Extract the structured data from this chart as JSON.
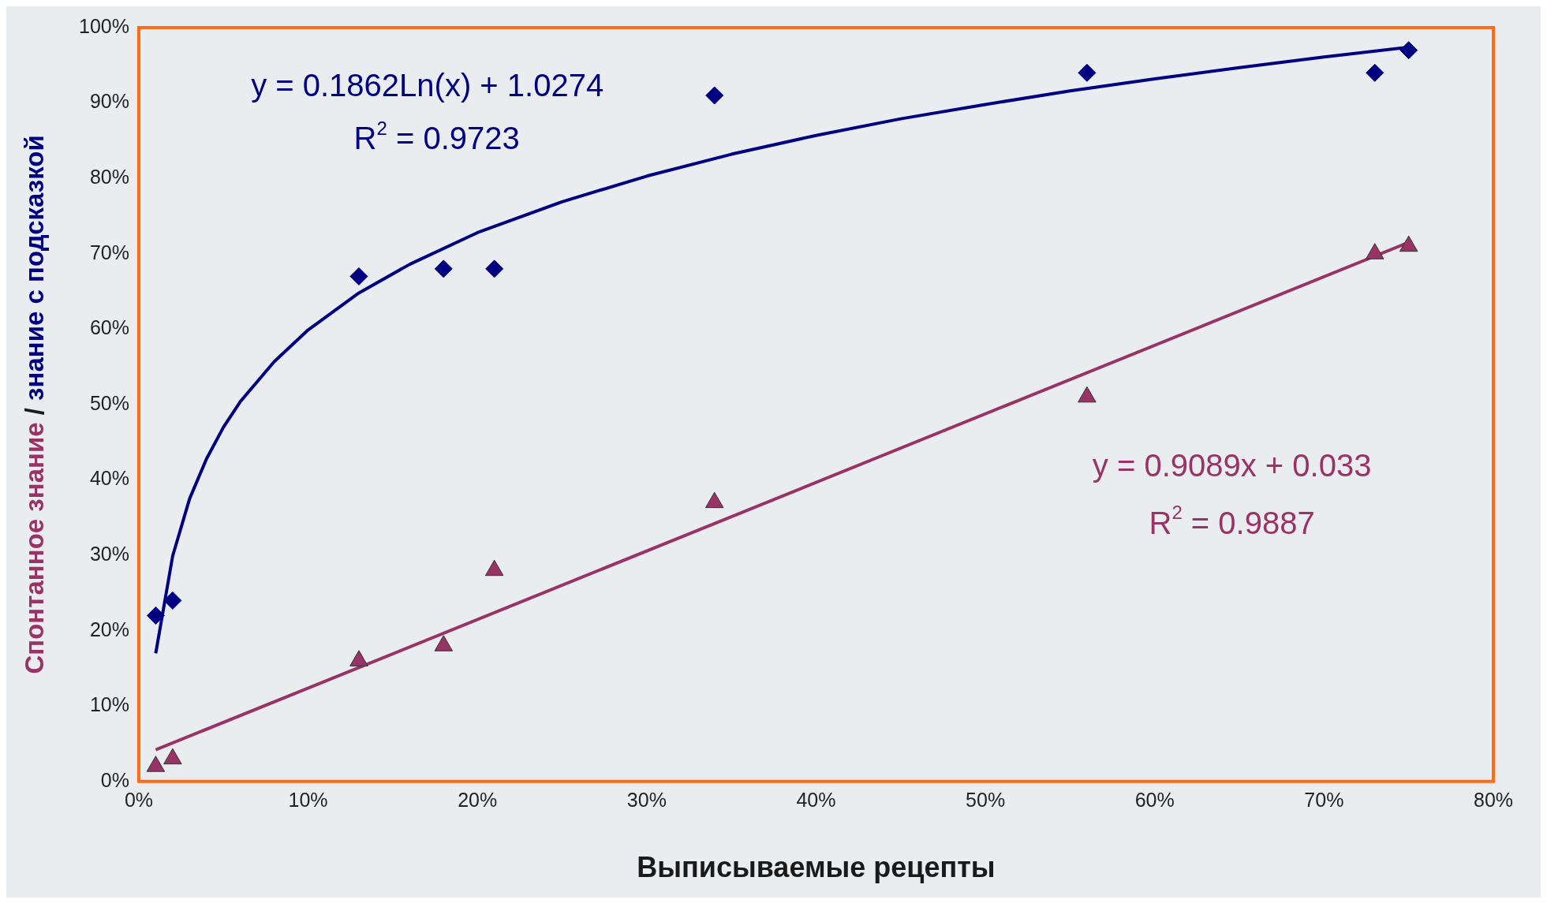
{
  "chart_data": {
    "type": "scatter",
    "xlabel": "Выписываемые рецепты",
    "ylabel": "Спонтанное знание / знание с подсказкой",
    "xlim": [
      0,
      80
    ],
    "xticks": [
      {
        "value": 0,
        "label": "0%"
      },
      {
        "value": 10,
        "label": "10%"
      },
      {
        "value": 20,
        "label": "20%"
      },
      {
        "value": 30,
        "label": "30%"
      },
      {
        "value": 40,
        "label": "40%"
      },
      {
        "value": 50,
        "label": "50%"
      },
      {
        "value": 60,
        "label": "60%"
      },
      {
        "value": 70,
        "label": "70%"
      },
      {
        "value": 80,
        "label": "80%"
      }
    ],
    "ylim": [
      0,
      100
    ],
    "yticks": [
      {
        "value": 0,
        "label": "0%"
      },
      {
        "value": 10,
        "label": "10%"
      },
      {
        "value": 20,
        "label": "20%"
      },
      {
        "value": 30,
        "label": "30%"
      },
      {
        "value": 40,
        "label": "40%"
      },
      {
        "value": 50,
        "label": "50%"
      },
      {
        "value": 60,
        "label": "60%"
      },
      {
        "value": 70,
        "label": "70%"
      },
      {
        "value": 80,
        "label": "80%"
      },
      {
        "value": 90,
        "label": "90%"
      },
      {
        "value": 100,
        "label": "100%"
      }
    ],
    "grid": false,
    "legend": false,
    "series": [
      {
        "type": "scatter",
        "marker": "diamond",
        "color": "#000080",
        "x": [
          1,
          2,
          13,
          18,
          21,
          34,
          56,
          73,
          75
        ],
        "values": [
          22,
          24,
          67,
          68,
          68,
          91,
          94,
          94,
          97
        ]
      },
      {
        "type": "scatter",
        "marker": "triangle",
        "color": "#993366",
        "x": [
          1,
          2,
          13,
          18,
          21,
          34,
          56,
          73,
          75
        ],
        "values": [
          2,
          3,
          16,
          18,
          28,
          37,
          51,
          70,
          71
        ]
      },
      {
        "type": "line",
        "marker": "none",
        "color": "#000080",
        "x": [
          1,
          2,
          3,
          4,
          5,
          6,
          8,
          10,
          13,
          16,
          20,
          25,
          30,
          35,
          40,
          45,
          50,
          55,
          60,
          65,
          70,
          75
        ],
        "values": [
          17.0,
          29.9,
          37.5,
          42.8,
          47.0,
          50.4,
          55.7,
          59.9,
          64.8,
          68.6,
          72.8,
          76.9,
          80.3,
          83.2,
          85.7,
          87.9,
          89.8,
          91.6,
          93.2,
          94.7,
          96.1,
          97.4
        ]
      },
      {
        "type": "line",
        "marker": "none",
        "color": "#993366",
        "x": [
          1,
          75
        ],
        "values": [
          4.2,
          71.5
        ]
      }
    ],
    "annotations": [
      "y = 0.1862Ln(x) + 1.0274",
      "R$^{2}$ = 0.9723",
      "y = 0.9089x + 0.033",
      "R$^{2}$ = 0.9887"
    ]
  }
}
